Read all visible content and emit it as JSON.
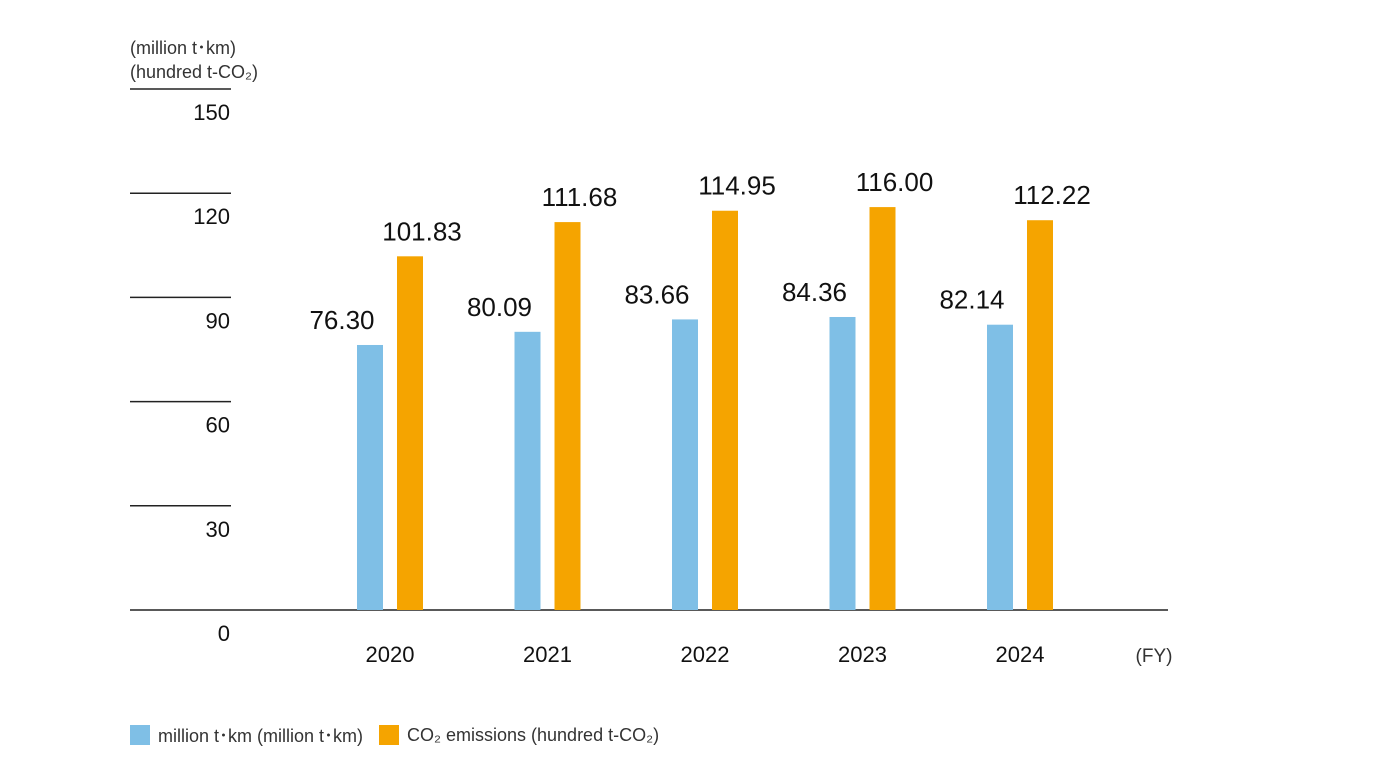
{
  "chart_data": {
    "type": "bar",
    "categories": [
      "2020",
      "2021",
      "2022",
      "2023",
      "2024"
    ],
    "series": [
      {
        "name": "million t･km (million t･km)",
        "color": "#7fbfe6",
        "values": [
          76.3,
          80.09,
          83.66,
          84.36,
          82.14
        ],
        "labels": [
          "76.30",
          "80.09",
          "83.66",
          "84.36",
          "82.14"
        ]
      },
      {
        "name": "CO₂ emissions (hundred t-CO₂)",
        "color": "#f5a400",
        "values": [
          101.83,
          111.68,
          114.95,
          116.0,
          112.22
        ],
        "labels": [
          "101.83",
          "111.68",
          "114.95",
          "116.00",
          "112.22"
        ]
      }
    ],
    "ylim": [
      0,
      150
    ],
    "yticks": [
      "0",
      "30",
      "60",
      "90",
      "120",
      "150"
    ],
    "ylabel_line1": "(million t･km)",
    "ylabel_line2": "(hundred t-CO₂)",
    "xlabel": "(FY)",
    "grid": true,
    "legend_position": "bottom-left"
  }
}
